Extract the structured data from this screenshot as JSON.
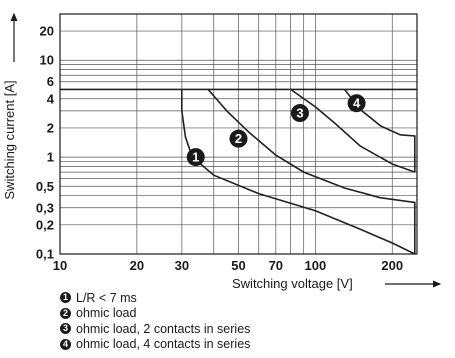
{
  "chart_data": {
    "type": "line",
    "title": "",
    "xlabel": "Switching voltage [V]",
    "ylabel": "Switching current [A]",
    "x_scale": "log",
    "y_scale": "log",
    "xlim": [
      10,
      250
    ],
    "ylim": [
      0.1,
      30
    ],
    "x_ticks": [
      10,
      20,
      30,
      50,
      70,
      100,
      200
    ],
    "x_tick_labels": [
      "10",
      "20",
      "30",
      "50",
      "70",
      "100",
      "200"
    ],
    "y_ticks": [
      20,
      10,
      6,
      4,
      2,
      1,
      0.5,
      0.3,
      0.2,
      0.1
    ],
    "y_tick_labels": [
      "20",
      "10",
      "6",
      "4",
      "2",
      "1",
      "0,5",
      "0,3",
      "0,2",
      "0,1"
    ],
    "grid": true,
    "series": [
      {
        "badge": "1",
        "name": "L/R < 7 ms",
        "points": [
          [
            30,
            5
          ],
          [
            30,
            3
          ],
          [
            31,
            1.6
          ],
          [
            33,
            1.0
          ],
          [
            40,
            0.65
          ],
          [
            60,
            0.42
          ],
          [
            100,
            0.28
          ],
          [
            150,
            0.18
          ],
          [
            200,
            0.13
          ],
          [
            245,
            0.1
          ]
        ]
      },
      {
        "badge": "2",
        "name": "ohmic load",
        "points": [
          [
            38,
            5
          ],
          [
            45,
            3
          ],
          [
            55,
            1.8
          ],
          [
            70,
            1.05
          ],
          [
            90,
            0.7
          ],
          [
            130,
            0.48
          ],
          [
            180,
            0.38
          ],
          [
            245,
            0.34
          ],
          [
            245,
            0.1
          ]
        ]
      },
      {
        "badge": "3",
        "name": "ohmic load, 2 contacts in series",
        "points": [
          [
            80,
            5
          ],
          [
            100,
            3.3
          ],
          [
            120,
            2.2
          ],
          [
            150,
            1.3
          ],
          [
            200,
            0.85
          ],
          [
            245,
            0.7
          ]
        ]
      },
      {
        "badge": "4",
        "name": "ohmic load, 4 contacts in series",
        "points": [
          [
            130,
            5
          ],
          [
            150,
            3.1
          ],
          [
            180,
            2.1
          ],
          [
            215,
            1.7
          ],
          [
            245,
            1.65
          ],
          [
            245,
            0.7
          ]
        ]
      }
    ],
    "max_current_limit": 5
  },
  "legend": [
    {
      "badge": "1",
      "label": "L/R < 7 ms"
    },
    {
      "badge": "2",
      "label": "ohmic load"
    },
    {
      "badge": "3",
      "label": "ohmic load, 2 contacts in series"
    },
    {
      "badge": "4",
      "label": "ohmic load, 4 contacts in series"
    }
  ]
}
